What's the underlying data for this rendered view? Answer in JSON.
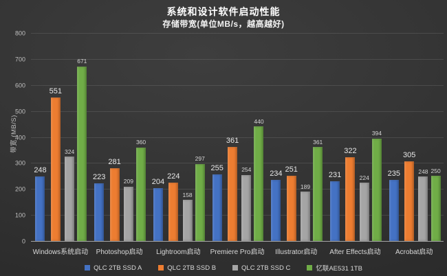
{
  "chart_data": {
    "type": "bar",
    "title": "系统和设计软件启动性能",
    "subtitle": "存储带宽(单位MB/s，越高越好)",
    "ylabel": "带宽 (MB/S)",
    "ylim": [
      0,
      800
    ],
    "yticks": [
      0,
      100,
      200,
      300,
      400,
      500,
      600,
      700,
      800
    ],
    "grid": true,
    "legend_position": "bottom",
    "categories": [
      "Windows系统启动",
      "Photoshop启动",
      "Lightroom启动",
      "Premiere Pro启动",
      "Illustrator启动",
      "After Effects启动",
      "Acrobat启动"
    ],
    "series": [
      {
        "name": "QLC 2TB SSD A",
        "color": "#4472C4",
        "values": [
          248,
          223,
          204,
          255,
          234,
          231,
          235
        ]
      },
      {
        "name": "QLC 2TB SSD B",
        "color": "#ED7D31",
        "values": [
          551,
          281,
          224,
          361,
          251,
          322,
          305
        ]
      },
      {
        "name": "QLC 2TB SSD C",
        "color": "#A5A5A5",
        "values": [
          324,
          209,
          158,
          254,
          189,
          224,
          248
        ]
      },
      {
        "name": "忆联AE531 1TB",
        "color": "#70AD47",
        "values": [
          671,
          360,
          297,
          440,
          361,
          394,
          250
        ]
      }
    ]
  }
}
